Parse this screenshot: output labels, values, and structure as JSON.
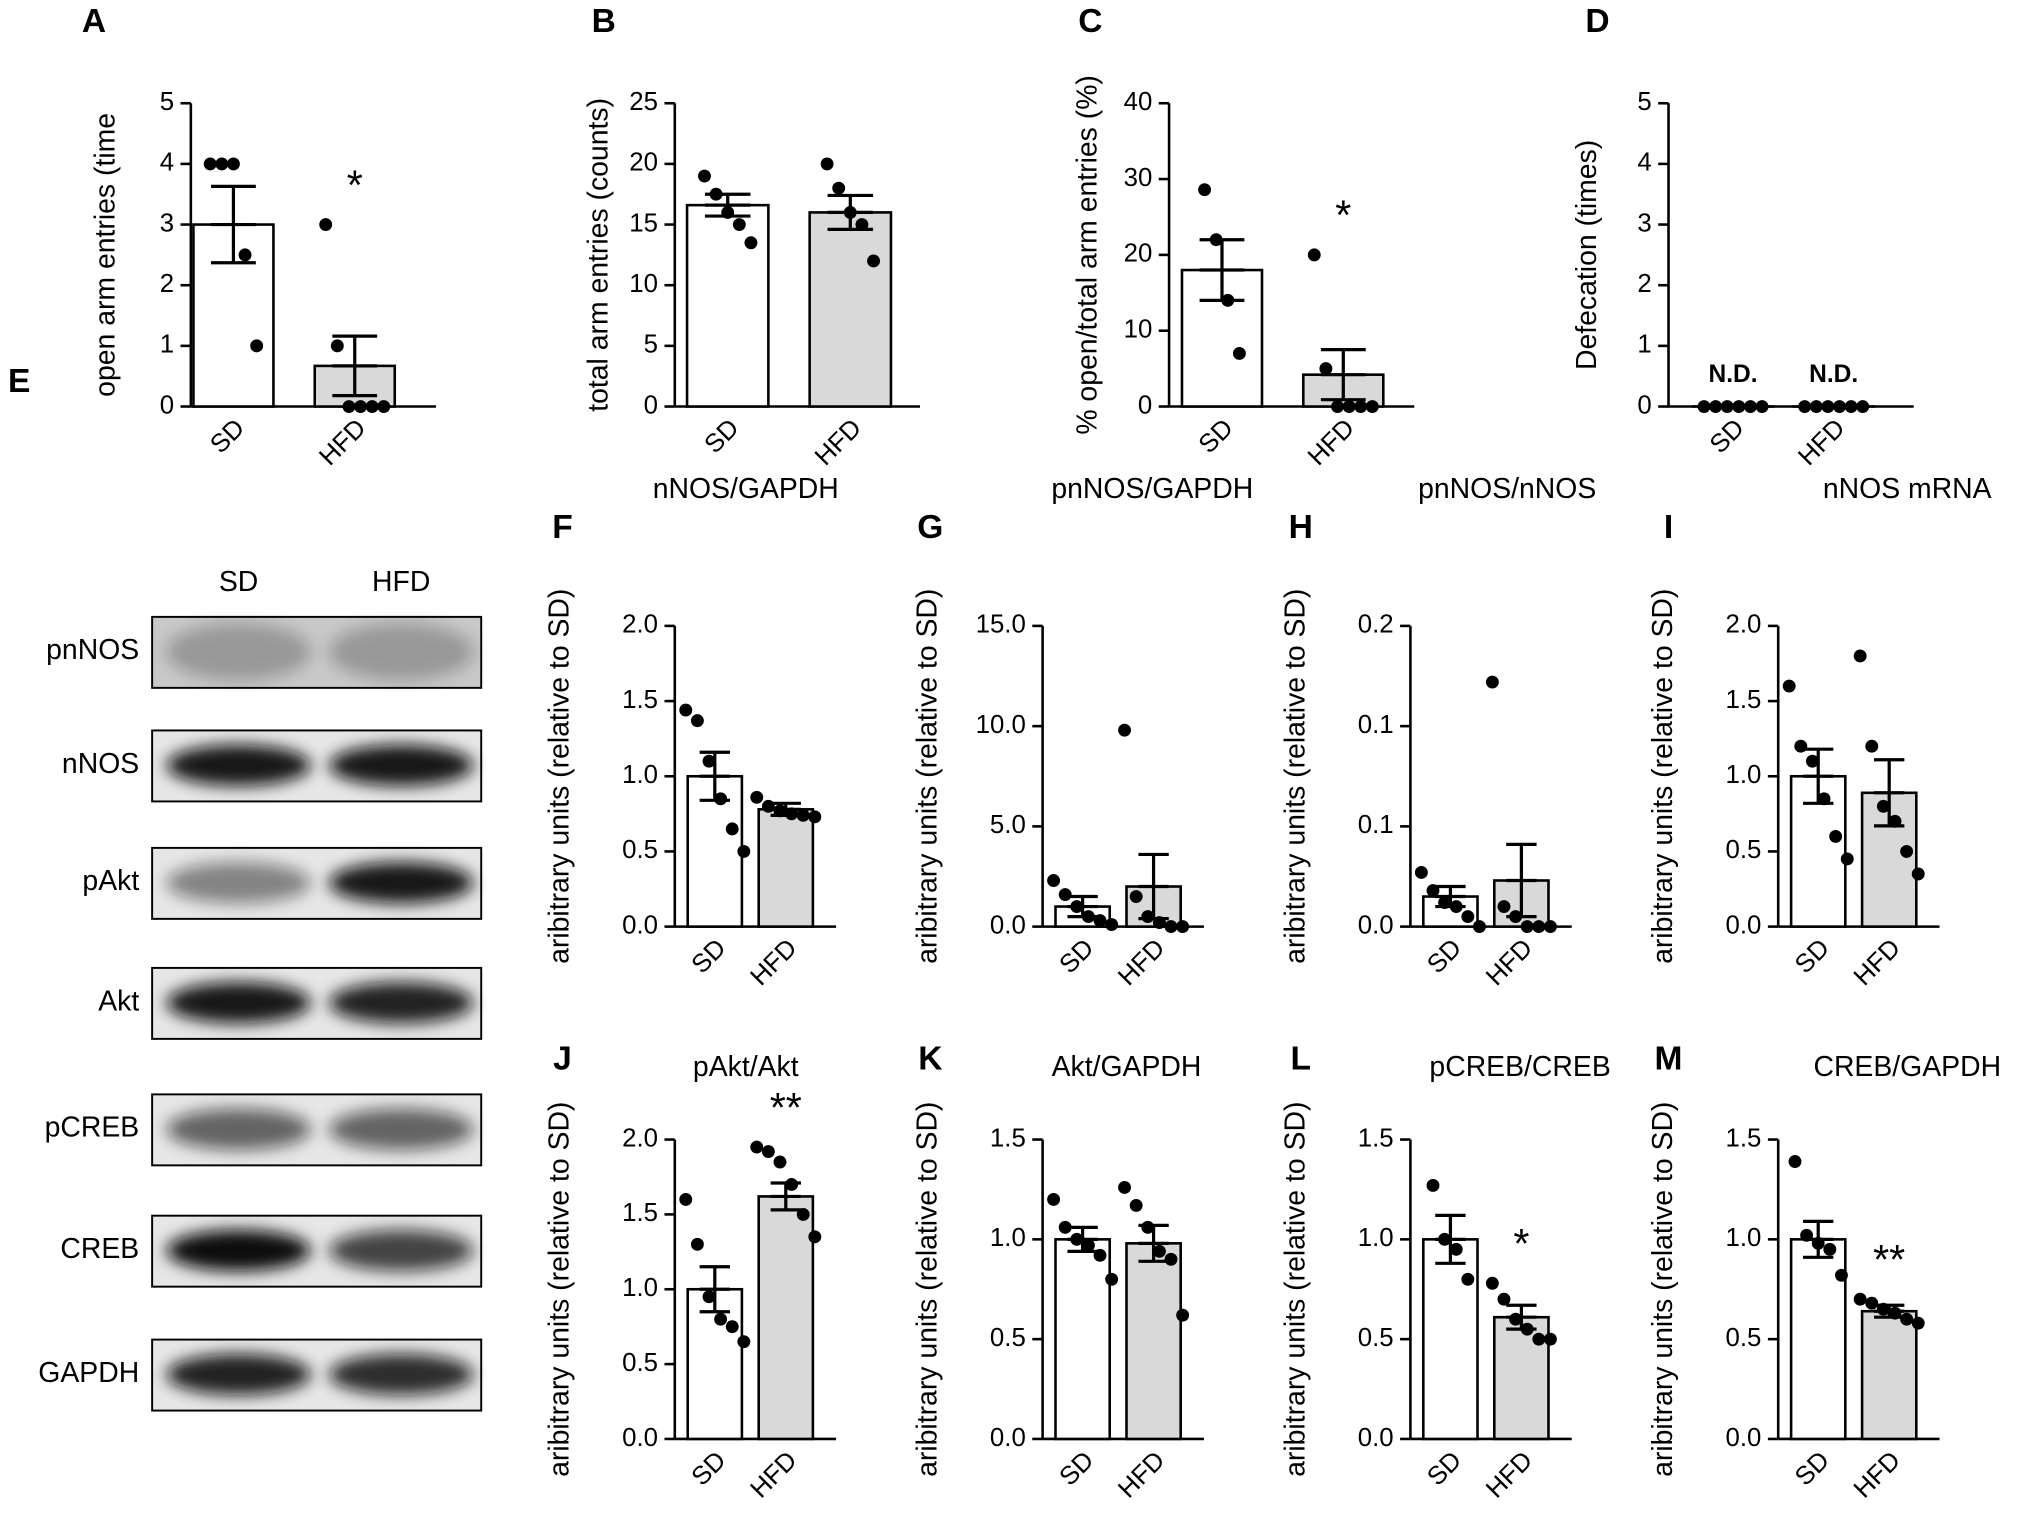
{
  "chart_data": [
    {
      "type": "bar",
      "panel": "A",
      "ylabel": "open arm entries (time",
      "categories": [
        "SD",
        "HFD"
      ],
      "colors": [
        "#ffffff",
        "#d9d9d9"
      ],
      "values": [
        3.0,
        0.67
      ],
      "errors": [
        0.63,
        0.49
      ],
      "points": [
        [
          4,
          4,
          4,
          2.5,
          1
        ],
        [
          3,
          1,
          0,
          0,
          0,
          0
        ]
      ],
      "ylim": [
        0,
        5
      ],
      "yticks": [
        0,
        1,
        2,
        3,
        4,
        5
      ],
      "annotations": [
        {
          "category": "HFD",
          "text": "*"
        }
      ]
    },
    {
      "type": "bar",
      "panel": "B",
      "ylabel": "total arm entries (counts)",
      "categories": [
        "SD",
        "HFD"
      ],
      "colors": [
        "#ffffff",
        "#d9d9d9"
      ],
      "values": [
        16.6,
        16.0
      ],
      "errors": [
        0.9,
        1.4
      ],
      "points": [
        [
          19,
          17.5,
          16,
          15,
          13.5
        ],
        [
          20,
          18,
          16,
          15,
          12
        ]
      ],
      "ylim": [
        0,
        25
      ],
      "yticks": [
        0,
        5,
        10,
        15,
        20,
        25
      ],
      "annotations": []
    },
    {
      "type": "bar",
      "panel": "C",
      "ylabel": "% open/total arm entries (%)",
      "categories": [
        "SD",
        "HFD"
      ],
      "colors": [
        "#ffffff",
        "#d9d9d9"
      ],
      "values": [
        18,
        4.2
      ],
      "errors": [
        4,
        3.3
      ],
      "points": [
        [
          28.6,
          22,
          14,
          7
        ],
        [
          20,
          5,
          0,
          0,
          0,
          0
        ]
      ],
      "ylim": [
        0,
        40
      ],
      "yticks": [
        0,
        10,
        20,
        30,
        40
      ],
      "annotations": [
        {
          "category": "HFD",
          "text": "*"
        }
      ]
    },
    {
      "type": "bar",
      "panel": "D",
      "ylabel": "Defecation (times)",
      "categories": [
        "SD",
        "HFD"
      ],
      "colors": [
        "#ffffff",
        "#d9d9d9"
      ],
      "values": [
        0,
        0
      ],
      "errors": [
        0,
        0
      ],
      "points": [
        [
          0,
          0,
          0,
          0,
          0,
          0
        ],
        [
          0,
          0,
          0,
          0,
          0,
          0
        ]
      ],
      "ylim": [
        0,
        5
      ],
      "yticks": [
        0,
        1,
        2,
        3,
        4,
        5
      ],
      "annotations": [
        {
          "category": "SD",
          "text": "N.D."
        },
        {
          "category": "HFD",
          "text": "N.D."
        }
      ]
    },
    {
      "type": "bar",
      "panel": "F",
      "title": "nNOS/GAPDH",
      "ylabel": "aribitrary units (relative to SD)",
      "categories": [
        "SD",
        "HFD"
      ],
      "colors": [
        "#ffffff",
        "#d9d9d9"
      ],
      "values": [
        1.0,
        0.78
      ],
      "errors": [
        0.16,
        0.04
      ],
      "points": [
        [
          1.44,
          1.37,
          1.1,
          0.85,
          0.65,
          0.5
        ],
        [
          0.86,
          0.8,
          0.77,
          0.75,
          0.74,
          0.73
        ]
      ],
      "ylim": [
        0,
        2
      ],
      "yticks": [
        {
          "value": 0,
          "label": "0.0"
        },
        0.5,
        {
          "value": 1,
          "label": "1.0"
        },
        1.5,
        {
          "value": 2,
          "label": "2.0"
        }
      ],
      "annotations": []
    },
    {
      "type": "bar",
      "panel": "G",
      "title": "pnNOS/GAPDH",
      "ylabel": "aribitrary units (relative to SD)",
      "categories": [
        "SD",
        "HFD"
      ],
      "colors": [
        "#ffffff",
        "#d9d9d9"
      ],
      "values": [
        1.0,
        2.0
      ],
      "errors": [
        0.5,
        1.6
      ],
      "points": [
        [
          2.3,
          1.6,
          1.0,
          0.5,
          0.3,
          0.1
        ],
        [
          9.8,
          1.5,
          0.5,
          0.2,
          0,
          0
        ]
      ],
      "ylim": [
        0,
        15
      ],
      "yticks": [
        {
          "value": 0,
          "label": "0.0"
        },
        {
          "value": 5,
          "label": "5.0"
        },
        {
          "value": 10,
          "label": "10.0"
        },
        {
          "value": 15,
          "label": "15.0"
        }
      ],
      "annotations": []
    },
    {
      "type": "bar",
      "panel": "H",
      "title": "pnNOS/nNOS",
      "ylabel": "aribitrary units (relative to SD)",
      "categories": [
        "SD",
        "HFD"
      ],
      "colors": [
        "#ffffff",
        "#d9d9d9"
      ],
      "values": [
        0.015,
        0.023
      ],
      "errors": [
        0.005,
        0.018
      ],
      "points": [
        [
          0.027,
          0.018,
          0.012,
          0.01,
          0.005,
          0
        ],
        [
          0.122,
          0.01,
          0.005,
          0,
          0,
          0
        ]
      ],
      "ylim": [
        0,
        0.15
      ],
      "yticks": [
        {
          "value": 0,
          "label": "0.0"
        },
        {
          "value": 0.05,
          "label": "0.1"
        },
        {
          "value": 0.1,
          "label": "0.1"
        },
        {
          "value": 0.15,
          "label": "0.2"
        }
      ],
      "annotations": []
    },
    {
      "type": "bar",
      "panel": "I",
      "title": "nNOS mRNA",
      "ylabel": "aribitrary units (relative to SD)",
      "categories": [
        "SD",
        "HFD"
      ],
      "colors": [
        "#ffffff",
        "#d9d9d9"
      ],
      "values": [
        1.0,
        0.89
      ],
      "errors": [
        0.18,
        0.22
      ],
      "points": [
        [
          1.6,
          1.2,
          1.1,
          0.85,
          0.6,
          0.45
        ],
        [
          1.8,
          1.2,
          0.8,
          0.7,
          0.5,
          0.35
        ]
      ],
      "ylim": [
        0,
        2
      ],
      "yticks": [
        {
          "value": 0,
          "label": "0.0"
        },
        0.5,
        {
          "value": 1,
          "label": "1.0"
        },
        1.5,
        {
          "value": 2,
          "label": "2.0"
        }
      ],
      "annotations": []
    },
    {
      "type": "bar",
      "panel": "J",
      "title": "pAkt/Akt",
      "ylabel": "aribitrary units (relative to SD)",
      "categories": [
        "SD",
        "HFD"
      ],
      "colors": [
        "#ffffff",
        "#d9d9d9"
      ],
      "values": [
        1.0,
        1.62
      ],
      "errors": [
        0.15,
        0.09
      ],
      "points": [
        [
          1.6,
          1.3,
          0.95,
          0.8,
          0.75,
          0.65
        ],
        [
          1.95,
          1.92,
          1.85,
          1.7,
          1.5,
          1.35
        ]
      ],
      "ylim": [
        0,
        2
      ],
      "yticks": [
        {
          "value": 0,
          "label": "0.0"
        },
        0.5,
        {
          "value": 1,
          "label": "1.0"
        },
        1.5,
        {
          "value": 2,
          "label": "2.0"
        }
      ],
      "annotations": [
        {
          "category": "HFD",
          "text": "**"
        }
      ]
    },
    {
      "type": "bar",
      "panel": "K",
      "title": "Akt/GAPDH",
      "ylabel": "aribitrary units (relative to SD)",
      "categories": [
        "SD",
        "HFD"
      ],
      "colors": [
        "#ffffff",
        "#d9d9d9"
      ],
      "values": [
        1.0,
        0.98
      ],
      "errors": [
        0.06,
        0.09
      ],
      "points": [
        [
          1.2,
          1.06,
          1.0,
          0.97,
          0.92,
          0.8
        ],
        [
          1.26,
          1.17,
          1.06,
          0.94,
          0.9,
          0.62
        ]
      ],
      "ylim": [
        0,
        1.5
      ],
      "yticks": [
        {
          "value": 0,
          "label": "0.0"
        },
        0.5,
        {
          "value": 1,
          "label": "1.0"
        },
        1.5
      ],
      "annotations": []
    },
    {
      "type": "bar",
      "panel": "L",
      "title": "pCREB/CREB",
      "ylabel": "aribitrary units (relative to SD)",
      "categories": [
        "SD",
        "HFD"
      ],
      "colors": [
        "#ffffff",
        "#d9d9d9"
      ],
      "values": [
        1.0,
        0.61
      ],
      "errors": [
        0.12,
        0.06
      ],
      "points": [
        [
          1.27,
          1.0,
          0.95,
          0.8
        ],
        [
          0.78,
          0.7,
          0.6,
          0.55,
          0.5,
          0.5
        ]
      ],
      "ylim": [
        0,
        1.5
      ],
      "yticks": [
        {
          "value": 0,
          "label": "0.0"
        },
        0.5,
        {
          "value": 1,
          "label": "1.0"
        },
        1.5
      ],
      "annotations": [
        {
          "category": "HFD",
          "text": "*"
        }
      ]
    },
    {
      "type": "bar",
      "panel": "M",
      "title": "CREB/GAPDH",
      "ylabel": "aribitrary units (relative to SD)",
      "categories": [
        "SD",
        "HFD"
      ],
      "colors": [
        "#ffffff",
        "#d9d9d9"
      ],
      "values": [
        1.0,
        0.64
      ],
      "errors": [
        0.09,
        0.03
      ],
      "points": [
        [
          1.39,
          1.02,
          0.98,
          0.95,
          0.82
        ],
        [
          0.7,
          0.68,
          0.65,
          0.63,
          0.6,
          0.58
        ]
      ],
      "ylim": [
        0,
        1.5
      ],
      "yticks": [
        {
          "value": 0,
          "label": "0.0"
        },
        0.5,
        {
          "value": 1,
          "label": "1.0"
        },
        1.5
      ],
      "annotations": [
        {
          "category": "HFD",
          "text": "**"
        }
      ]
    }
  ],
  "blot": {
    "panel": "E",
    "columns": [
      "SD",
      "HFD"
    ],
    "rows": [
      "pnNOS",
      "nNOS",
      "pAkt",
      "Akt",
      "pCREB",
      "CREB",
      "GAPDH"
    ]
  }
}
